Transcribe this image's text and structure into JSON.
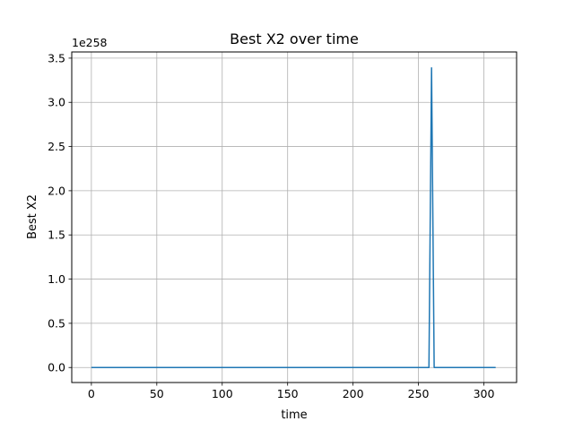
{
  "chart_data": {
    "type": "line",
    "title": "Best X2 over time",
    "xlabel": "time",
    "ylabel": "Best X2",
    "offset_label": "1e258",
    "xlim": [
      -15,
      325
    ],
    "ylim": [
      -0.17,
      3.57
    ],
    "x_ticks": [
      0,
      50,
      100,
      150,
      200,
      250,
      300
    ],
    "y_ticks": [
      "0.0",
      "0.5",
      "1.0",
      "1.5",
      "2.0",
      "2.5",
      "3.0",
      "3.5"
    ],
    "grid": true,
    "color": "#1f77b4",
    "series": [
      {
        "x": [
          0,
          258,
          260,
          262,
          309
        ],
        "y": [
          0,
          0,
          3.39,
          0,
          0
        ]
      }
    ]
  }
}
